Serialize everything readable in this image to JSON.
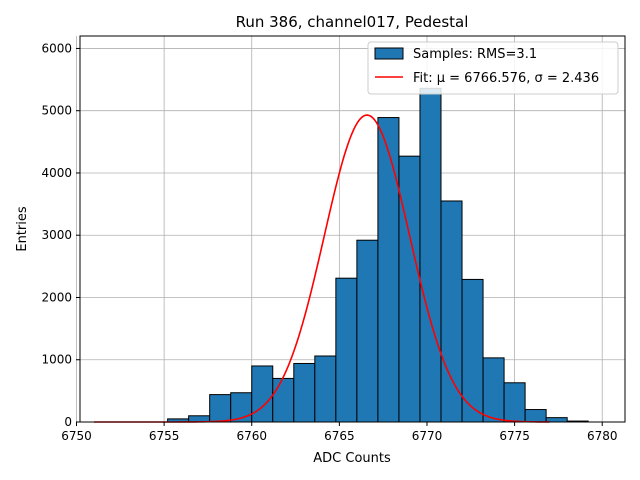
{
  "chart_data": {
    "type": "bar",
    "title": "Run 386, channel017, Pedestal",
    "xlabel": "ADC Counts",
    "ylabel": "Entries",
    "xlim": [
      6750.2,
      6781.3
    ],
    "ylim": [
      0,
      6200
    ],
    "xticks": [
      6750,
      6755,
      6760,
      6765,
      6770,
      6775,
      6780
    ],
    "yticks": [
      0,
      1000,
      2000,
      3000,
      4000,
      5000,
      6000
    ],
    "grid": true,
    "legend_position": "top-right",
    "bar_color": "#1f77b4",
    "fit_color": "#ff0000",
    "bins": [
      {
        "x0": 6755.2,
        "x1": 6756.4,
        "value": 50
      },
      {
        "x0": 6756.4,
        "x1": 6757.6,
        "value": 100
      },
      {
        "x0": 6757.6,
        "x1": 6758.8,
        "value": 440
      },
      {
        "x0": 6758.8,
        "x1": 6760.0,
        "value": 470
      },
      {
        "x0": 6760.0,
        "x1": 6761.2,
        "value": 900
      },
      {
        "x0": 6761.2,
        "x1": 6762.4,
        "value": 700
      },
      {
        "x0": 6762.4,
        "x1": 6763.6,
        "value": 940
      },
      {
        "x0": 6763.6,
        "x1": 6764.8,
        "value": 1060
      },
      {
        "x0": 6764.8,
        "x1": 6766.0,
        "value": 2310
      },
      {
        "x0": 6766.0,
        "x1": 6767.2,
        "value": 2920
      },
      {
        "x0": 6767.2,
        "x1": 6768.4,
        "value": 4890
      },
      {
        "x0": 6768.4,
        "x1": 6769.6,
        "value": 4270
      },
      {
        "x0": 6769.6,
        "x1": 6770.8,
        "value": 5360
      },
      {
        "x0": 6770.8,
        "x1": 6772.0,
        "value": 3550
      },
      {
        "x0": 6772.0,
        "x1": 6773.2,
        "value": 2290
      },
      {
        "x0": 6773.2,
        "x1": 6774.4,
        "value": 1030
      },
      {
        "x0": 6774.4,
        "x1": 6775.6,
        "value": 630
      },
      {
        "x0": 6775.6,
        "x1": 6776.8,
        "value": 200
      },
      {
        "x0": 6776.8,
        "x1": 6778.0,
        "value": 70
      },
      {
        "x0": 6778.0,
        "x1": 6779.2,
        "value": 15
      }
    ],
    "fit": {
      "mu": 6766.576,
      "sigma": 2.436,
      "amplitude": 4930,
      "x_range": [
        6751,
        6777
      ]
    },
    "legend": [
      {
        "label": "Samples: RMS=3.1",
        "kind": "patch"
      },
      {
        "label": "Fit: μ = 6766.576, σ = 2.436",
        "kind": "line"
      }
    ]
  }
}
